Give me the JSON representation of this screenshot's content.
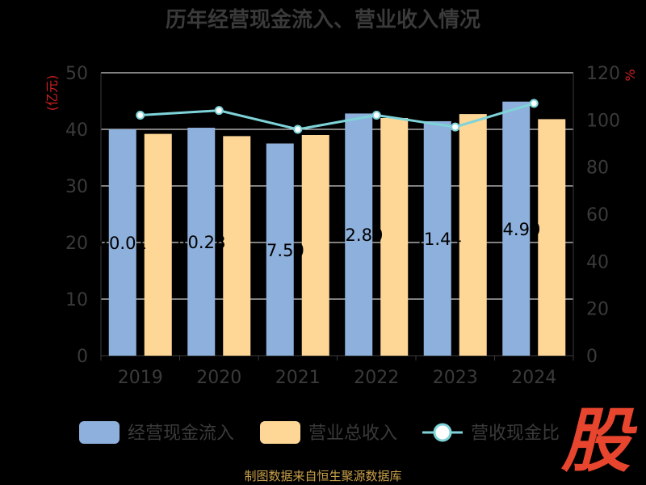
{
  "title": "历年经营现金流入、营业收入情况",
  "source": "制图数据来自恒生聚源数据库",
  "logo_text": "股",
  "colors": {
    "inflow": "#8eb0dc",
    "revenue": "#fed695",
    "ratio_line": "#7ed3d8",
    "axis_text": "#3a3a3a",
    "unit_text": "#d02020",
    "grid": "#ffffff",
    "data_label": "#000000",
    "legend_text": "#3a3a3a"
  },
  "chart_data": {
    "type": "bar",
    "categories": [
      "2019",
      "2020",
      "2021",
      "2022",
      "2023",
      "2024"
    ],
    "series": [
      {
        "name": "经营现金流入",
        "kind": "bar",
        "axis": "left",
        "values": [
          40.01,
          40.28,
          37.5,
          42.8,
          41.44,
          44.9
        ],
        "labels": [
          "40.01",
          "40.28",
          "37.50",
          "42.80",
          "41.44",
          "44.90"
        ]
      },
      {
        "name": "营业总收入",
        "kind": "bar",
        "axis": "left",
        "values": [
          39.2,
          38.8,
          39.0,
          42.0,
          42.7,
          41.8
        ]
      },
      {
        "name": "营收现金比",
        "kind": "line",
        "axis": "right",
        "values": [
          102,
          104,
          96,
          102,
          97,
          107
        ]
      }
    ],
    "y_left": {
      "label": "(亿元)",
      "lim": [
        0,
        50
      ],
      "ticks": [
        "0",
        "10",
        "20",
        "30",
        "40",
        "50"
      ]
    },
    "y_right": {
      "label": "%",
      "lim": [
        0,
        120
      ],
      "ticks": [
        "0",
        "20",
        "40",
        "60",
        "80",
        "100",
        "120"
      ]
    },
    "grid": true,
    "legend_position": "bottom"
  }
}
